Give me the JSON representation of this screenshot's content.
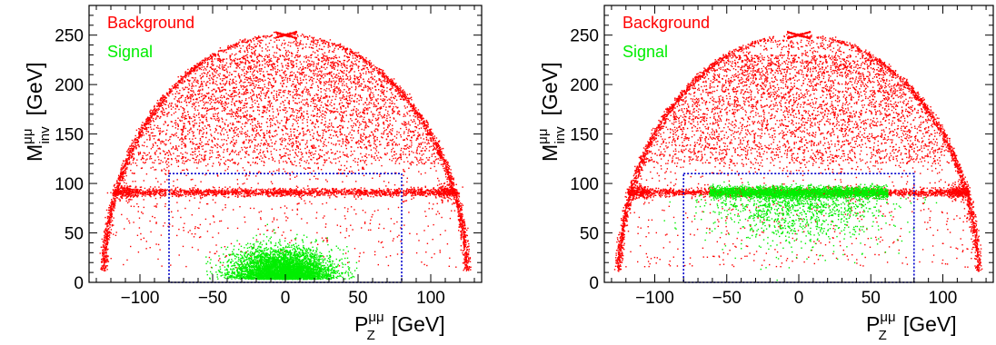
{
  "chart_data": [
    {
      "type": "scatter",
      "title": "",
      "xlabel": {
        "main": "P",
        "sub": "Z",
        "sup": "μμ",
        "unit": "[GeV]"
      },
      "ylabel": {
        "main": "M",
        "sub": "inv",
        "sup": "μμ",
        "unit": "[GeV]"
      },
      "xlim": [
        -135,
        135
      ],
      "ylim": [
        0,
        280
      ],
      "xticks": [
        -100,
        -50,
        0,
        50,
        100
      ],
      "xtick_labels": [
        "−100",
        "−50",
        "0",
        "50",
        "100"
      ],
      "yticks": [
        0,
        50,
        100,
        150,
        200,
        250
      ],
      "ytick_labels": [
        "0",
        "50",
        "100",
        "150",
        "200",
        "250"
      ],
      "legend": {
        "placement": "top-left",
        "entries": [
          "Background",
          "Signal"
        ]
      },
      "colors": {
        "Background": "#ff0000",
        "Signal": "#00ee00",
        "box": "#0000cc"
      },
      "grid": false,
      "selection_box": {
        "x": [
          -80,
          80
        ],
        "y": [
          0,
          110
        ]
      },
      "series": [
        {
          "name": "Background",
          "description_points": [
            [
              -125,
              12
            ],
            [
              -110,
              90
            ],
            [
              -50,
              205
            ],
            [
              0,
              250
            ],
            [
              50,
              205
            ],
            [
              110,
              90
            ],
            [
              125,
              12
            ]
          ],
          "z_band_mass": 91
        },
        {
          "name": "Signal",
          "center": [
            0,
            15
          ],
          "x_range": [
            -55,
            50
          ],
          "y_range": [
            0,
            60
          ]
        }
      ]
    },
    {
      "type": "scatter",
      "title": "",
      "xlabel": {
        "main": "P",
        "sub": "Z",
        "sup": "μμ",
        "unit": "[GeV]"
      },
      "ylabel": {
        "main": "M",
        "sub": "inv",
        "sup": "μμ",
        "unit": "[GeV]"
      },
      "xlim": [
        -135,
        135
      ],
      "ylim": [
        0,
        280
      ],
      "xticks": [
        -100,
        -50,
        0,
        50,
        100
      ],
      "xtick_labels": [
        "−100",
        "−50",
        "0",
        "50",
        "100"
      ],
      "yticks": [
        0,
        50,
        100,
        150,
        200,
        250
      ],
      "ytick_labels": [
        "0",
        "50",
        "100",
        "150",
        "200",
        "250"
      ],
      "legend": {
        "placement": "top-left",
        "entries": [
          "Background",
          "Signal"
        ]
      },
      "colors": {
        "Background": "#ff0000",
        "Signal": "#00ee00",
        "box": "#0000cc"
      },
      "grid": false,
      "selection_box": {
        "x": [
          -80,
          80
        ],
        "y": [
          0,
          110
        ]
      },
      "series": [
        {
          "name": "Background",
          "description_points": [
            [
              -125,
              12
            ],
            [
              -110,
              90
            ],
            [
              -50,
              205
            ],
            [
              0,
              250
            ],
            [
              50,
              205
            ],
            [
              110,
              90
            ],
            [
              125,
              12
            ]
          ],
          "z_band_mass": 91
        },
        {
          "name": "Signal",
          "center": [
            0,
            91
          ],
          "x_range": [
            -65,
            60
          ],
          "y_range": [
            10,
            110
          ]
        }
      ]
    }
  ]
}
